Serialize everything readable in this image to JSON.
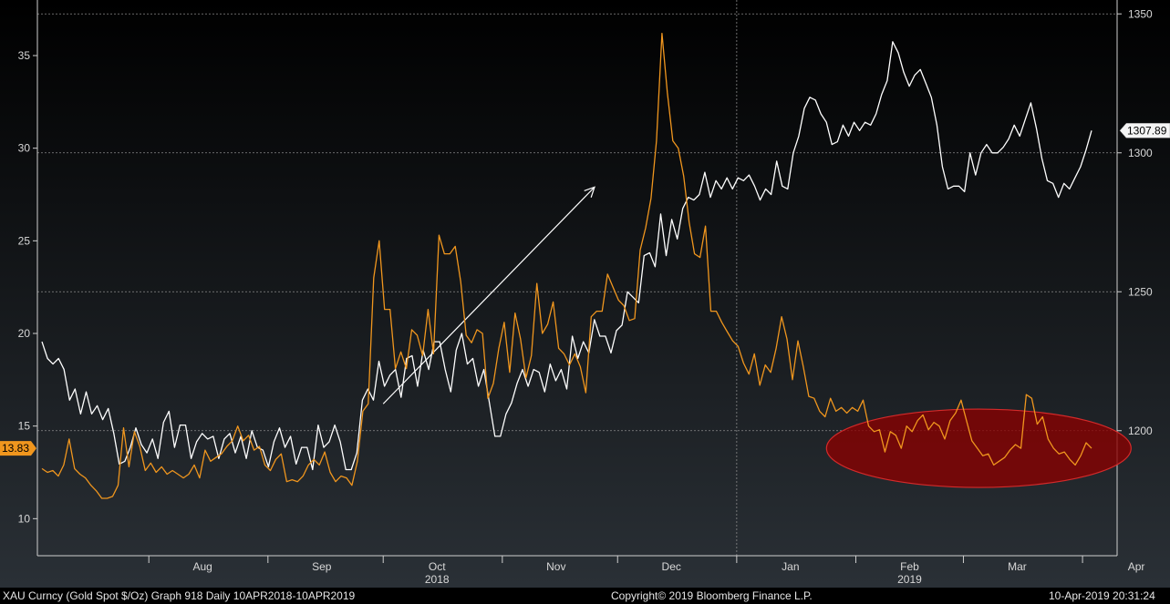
{
  "chart_data": {
    "type": "line",
    "title": "",
    "x_range": [
      "2018-07-03",
      "2019-04-10"
    ],
    "x_tick_labels": [
      {
        "label": "Aug",
        "date": "2018-08-15"
      },
      {
        "label": "Sep",
        "date": "2018-09-15"
      },
      {
        "label": "Oct",
        "date": "2018-10-15"
      },
      {
        "label": "Nov",
        "date": "2018-11-15"
      },
      {
        "label": "Dec",
        "date": "2018-12-15"
      },
      {
        "label": "Jan",
        "date": "2019-01-15"
      },
      {
        "label": "Feb",
        "date": "2019-02-15"
      },
      {
        "label": "Mar",
        "date": "2019-03-15"
      },
      {
        "label": "Apr",
        "date": "2019-04-15"
      }
    ],
    "year_labels": [
      {
        "label": "2018",
        "date": "2018-10-15"
      },
      {
        "label": "2019",
        "date": "2019-02-15"
      }
    ],
    "left_axis": {
      "ylim": [
        8,
        38
      ],
      "ticks": [
        10,
        15,
        20,
        25,
        30,
        35
      ]
    },
    "right_axis": {
      "ylim": [
        1155,
        1355
      ],
      "ticks": [
        1200,
        1250,
        1300,
        1350
      ]
    },
    "grid": true,
    "series": [
      {
        "axis": "right",
        "color": "#ffffff",
        "last_value_label": "1307.89",
        "values": [
          1232,
          1226,
          1224,
          1226,
          1222,
          1211,
          1215,
          1206,
          1214,
          1206,
          1209,
          1204,
          1208,
          1199,
          1188,
          1189,
          1194,
          1201,
          1195,
          1192,
          1197,
          1190,
          1203,
          1207,
          1194,
          1202,
          1202,
          1190,
          1196,
          1199,
          1197,
          1198,
          1190,
          1197,
          1199,
          1192,
          1198,
          1190,
          1200,
          1194,
          1193,
          1187,
          1196,
          1201,
          1194,
          1198,
          1188,
          1194,
          1194,
          1186,
          1202,
          1194,
          1196,
          1202,
          1196,
          1186,
          1186,
          1192,
          1211,
          1215,
          1211,
          1225,
          1216,
          1220,
          1222,
          1212,
          1226,
          1227,
          1216,
          1229,
          1222,
          1232,
          1232,
          1222,
          1214,
          1229,
          1235,
          1224,
          1226,
          1216,
          1222,
          1210,
          1198,
          1198,
          1206,
          1210,
          1217,
          1222,
          1216,
          1222,
          1221,
          1214,
          1224,
          1218,
          1222,
          1215,
          1234,
          1226,
          1232,
          1228,
          1240,
          1234,
          1234,
          1228,
          1236,
          1238,
          1250,
          1248,
          1246,
          1263,
          1264,
          1259,
          1278,
          1263,
          1276,
          1269,
          1280,
          1284,
          1283,
          1285,
          1293,
          1284,
          1290,
          1287,
          1291,
          1287,
          1291,
          1290,
          1292,
          1288,
          1283,
          1287,
          1285,
          1297,
          1288,
          1287,
          1300,
          1306,
          1316,
          1320,
          1319,
          1314,
          1311,
          1303,
          1304,
          1310,
          1306,
          1311,
          1308,
          1311,
          1310,
          1314,
          1321,
          1326,
          1340,
          1336,
          1329,
          1324,
          1328,
          1330,
          1325,
          1320,
          1310,
          1295,
          1287,
          1288,
          1288,
          1286,
          1300,
          1292,
          1300,
          1303,
          1300,
          1300,
          1302,
          1305,
          1310,
          1306,
          1312,
          1318,
          1309,
          1298,
          1290,
          1289,
          1284,
          1289,
          1287,
          1291,
          1295,
          1301,
          1308
        ]
      },
      {
        "axis": "left",
        "color": "#f0961e",
        "last_value_label": "13.83",
        "values": [
          12.7,
          12.5,
          12.6,
          12.3,
          12.9,
          14.3,
          12.7,
          12.4,
          12.2,
          11.8,
          11.5,
          11.1,
          11.1,
          11.2,
          11.8,
          14.9,
          12.8,
          14.7,
          13.9,
          12.6,
          13.0,
          12.5,
          12.8,
          12.4,
          12.6,
          12.4,
          12.2,
          12.4,
          12.9,
          12.2,
          13.7,
          13.1,
          13.3,
          13.5,
          13.9,
          14.2,
          15.0,
          14.2,
          14.5,
          13.7,
          13.9,
          12.9,
          12.6,
          13.2,
          13.5,
          12.0,
          12.1,
          12.0,
          12.3,
          12.9,
          13.2,
          12.9,
          13.6,
          12.5,
          12.0,
          12.3,
          12.2,
          11.8,
          13.1,
          15.8,
          16.2,
          23.0,
          25.0,
          21.3,
          21.3,
          18.1,
          19.0,
          18.1,
          20.2,
          19.9,
          18.8,
          21.3,
          18.9,
          25.3,
          24.3,
          24.3,
          24.7,
          22.8,
          19.9,
          19.5,
          20.2,
          20.0,
          16.5,
          17.3,
          19.2,
          20.6,
          17.9,
          21.1,
          19.7,
          17.6,
          18.8,
          22.7,
          20.0,
          20.5,
          21.7,
          19.2,
          18.9,
          18.3,
          18.9,
          18.2,
          16.8,
          20.9,
          21.2,
          21.2,
          23.2,
          22.5,
          21.8,
          21.5,
          20.7,
          20.8,
          24.5,
          25.7,
          27.3,
          30.4,
          36.2,
          33.0,
          30.4,
          30.0,
          28.5,
          26.0,
          24.3,
          24.1,
          25.8,
          21.2,
          21.2,
          20.6,
          20.1,
          19.6,
          19.3,
          18.4,
          17.8,
          18.9,
          17.2,
          18.3,
          17.9,
          19.2,
          20.9,
          19.7,
          17.5,
          19.6,
          18.2,
          16.6,
          16.5,
          15.8,
          15.5,
          16.5,
          15.8,
          16.0,
          15.7,
          16.0,
          15.8,
          16.4,
          15.0,
          14.7,
          14.8,
          13.6,
          14.7,
          14.5,
          13.8,
          15.0,
          14.7,
          15.3,
          15.6,
          14.8,
          15.2,
          15.0,
          14.3,
          15.3,
          15.7,
          16.4,
          15.3,
          14.2,
          13.8,
          13.4,
          13.5,
          12.9,
          13.1,
          13.3,
          13.7,
          14.0,
          13.8,
          16.7,
          16.5,
          15.1,
          15.5,
          14.3,
          13.8,
          13.5,
          13.6,
          13.2,
          12.9,
          13.4,
          14.1,
          13.8
        ]
      }
    ],
    "annotations": {
      "arrow": {
        "from": {
          "date": "2018-10-01",
          "value": 16.2
        },
        "to": {
          "date": "2018-11-25",
          "value": 27.9
        }
      },
      "highlight_ellipse": {
        "center_date": "2019-03-05",
        "center_value": 13.8,
        "color": "#8b0000"
      }
    }
  },
  "footer": {
    "left": "XAU Curncy (Gold Spot  $/Oz) Graph 918  Daily 10APR2018-10APR2019",
    "center": "Copyright© 2019 Bloomberg Finance L.P.",
    "right": "10-Apr-2019 20:31:24"
  }
}
